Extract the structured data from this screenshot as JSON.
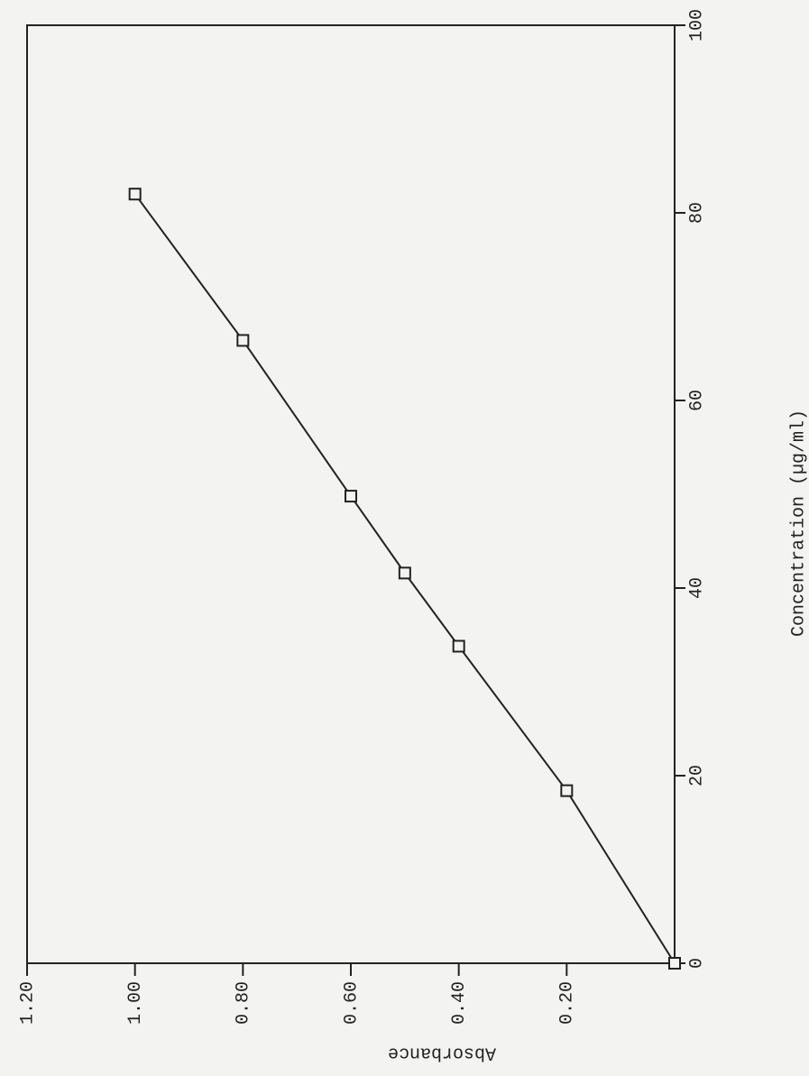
{
  "chart_data": {
    "type": "line",
    "x_label": "Concentration (µg/ml)",
    "y_label": "Absorbance",
    "x": [
      0,
      18.4,
      33.8,
      41.6,
      49.8,
      66.4,
      82.0
    ],
    "values": [
      0,
      0.2,
      0.4,
      0.5,
      0.6,
      0.8,
      1.0
    ],
    "color": "#222222",
    "xlim": [
      0,
      100
    ],
    "xticks": [
      0,
      20,
      40,
      60,
      80,
      100
    ],
    "ylim": [
      0,
      1.2
    ],
    "yticks": [
      {
        "value": 0.2,
        "label": "0.20"
      },
      {
        "value": 0.4,
        "label": "0.40"
      },
      {
        "value": 0.6,
        "label": "0.60"
      },
      {
        "value": 0.8,
        "label": "0.80"
      },
      {
        "value": 1.0,
        "label": "1.00"
      },
      {
        "value": 1.2,
        "label": "1.20"
      }
    ],
    "marker": "square",
    "grid": false
  }
}
